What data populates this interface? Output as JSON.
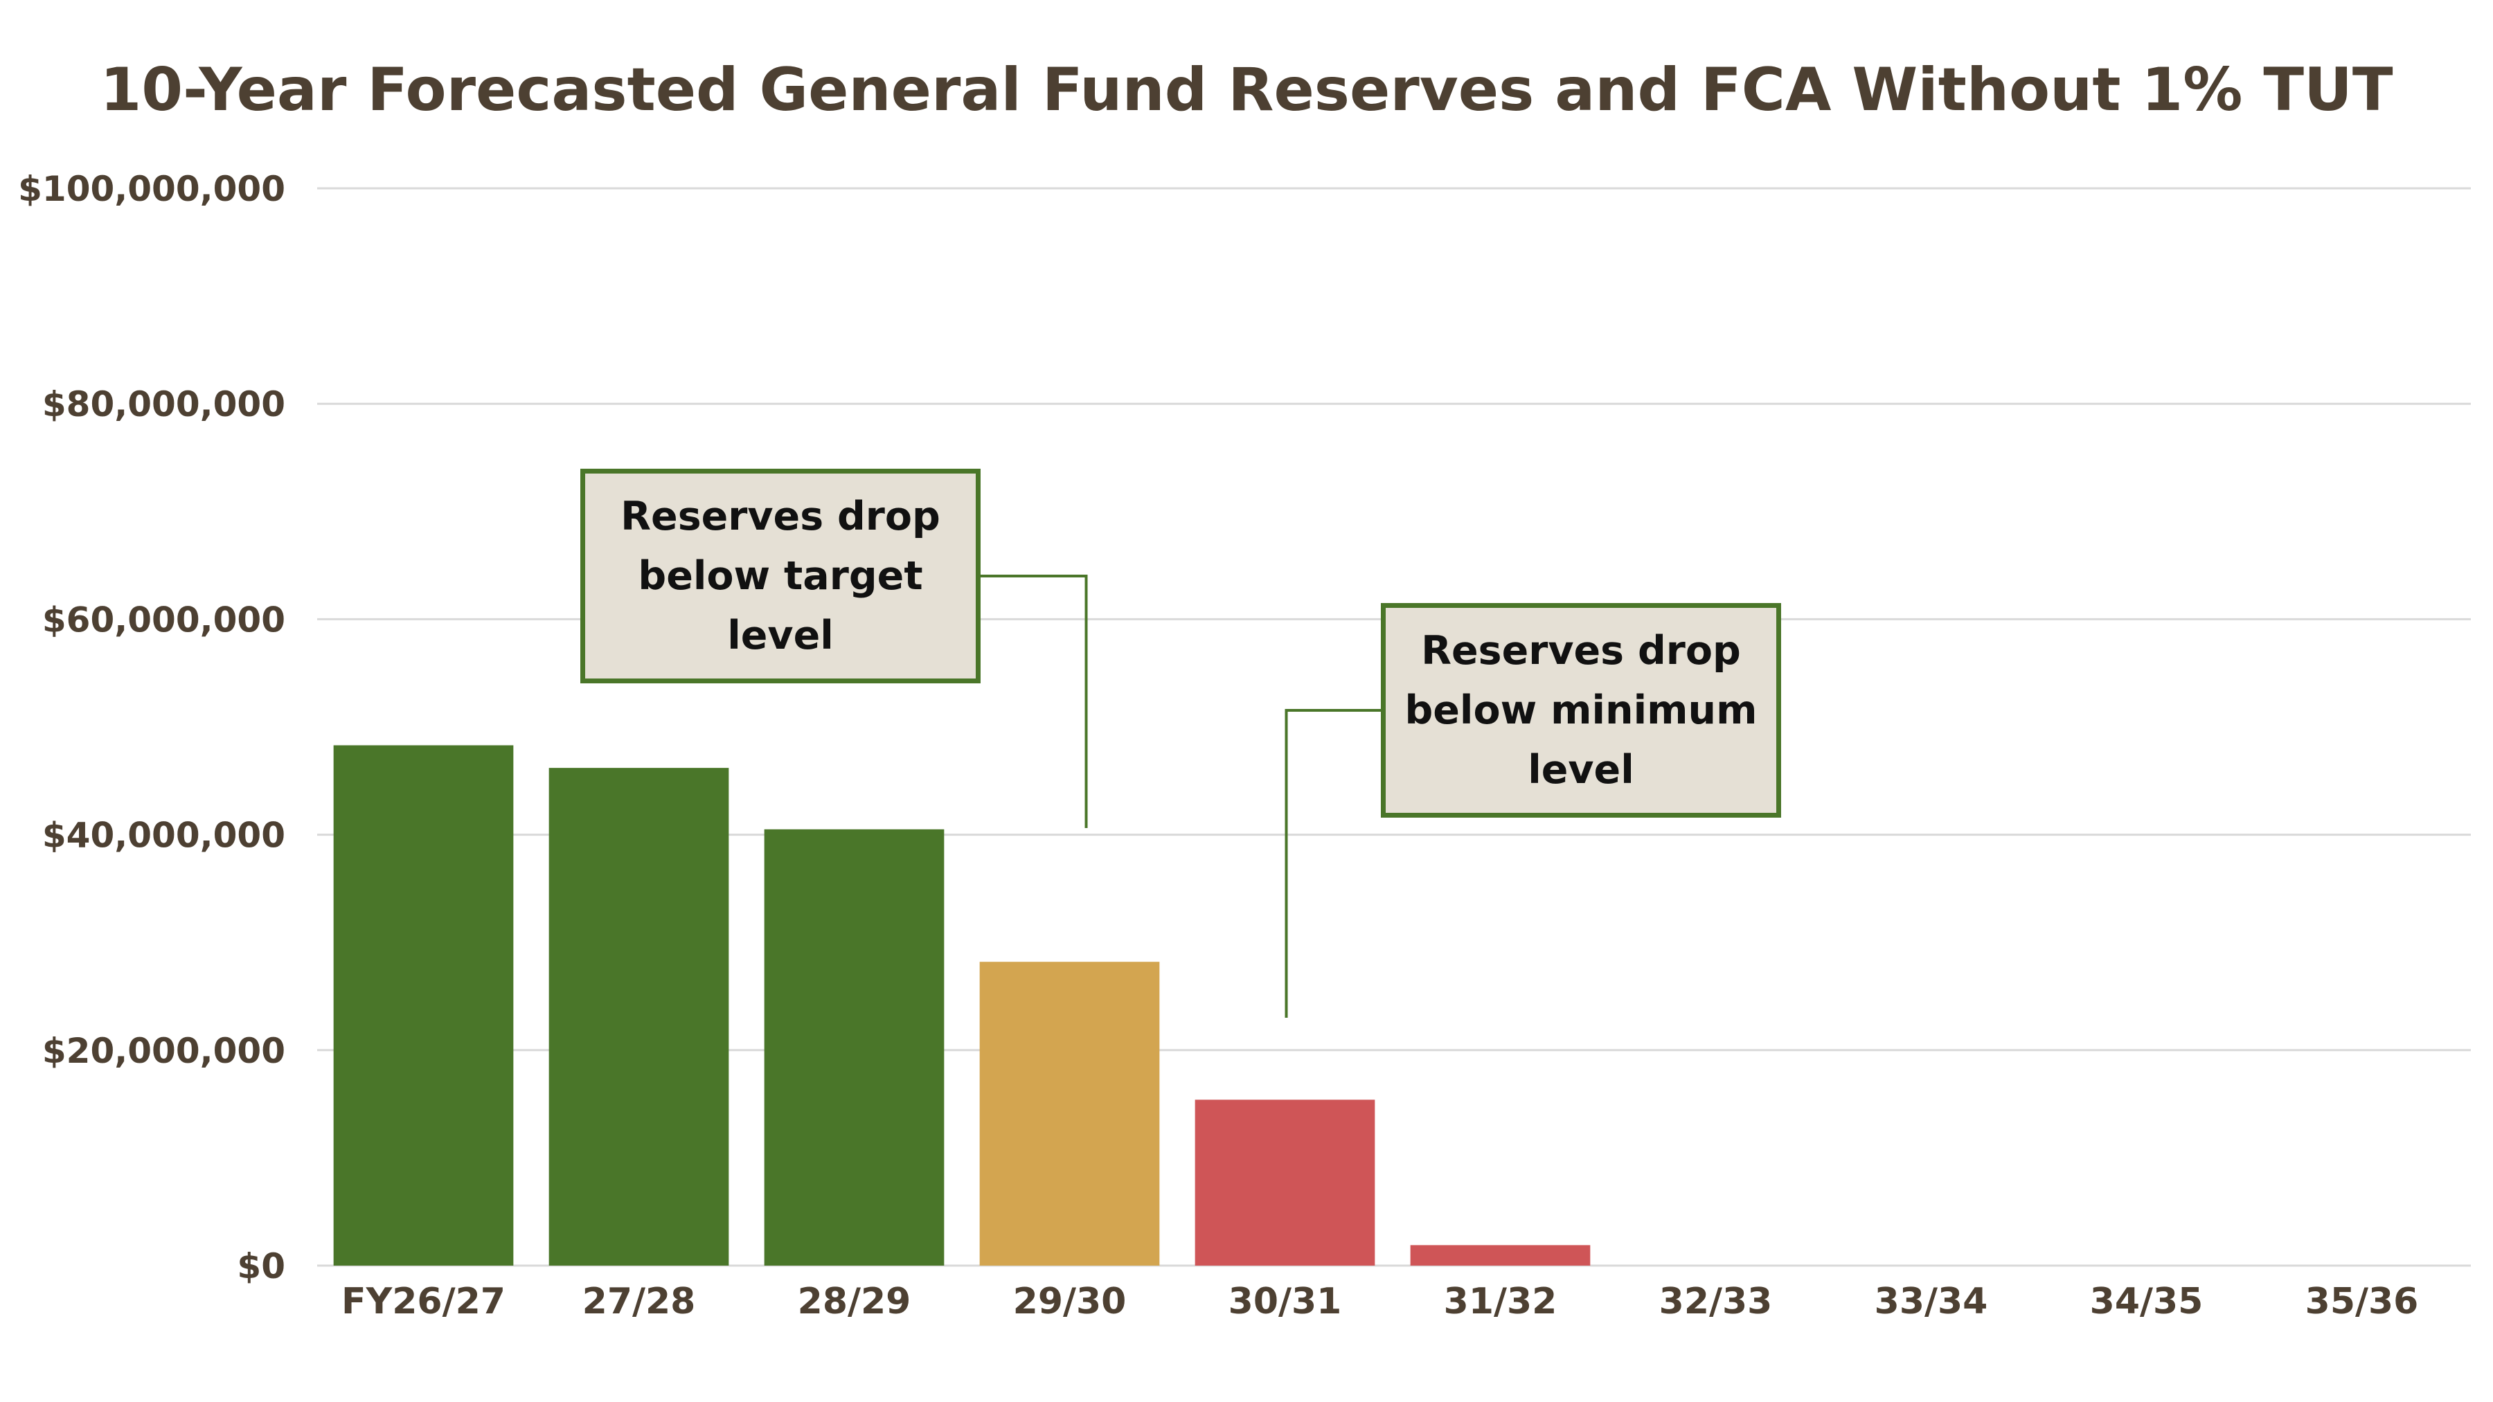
{
  "chart_data": {
    "type": "bar",
    "title": "10-Year Forecasted General Fund Reserves and FCA Without 1% TUT",
    "xlabel": "",
    "ylabel": "",
    "categories": [
      "FY26/27",
      "27/28",
      "28/29",
      "29/30",
      "30/31",
      "31/32",
      "32/33",
      "33/34",
      "34/35",
      "35/36"
    ],
    "values": [
      48300000,
      46200000,
      40500000,
      28200000,
      15400000,
      1900000,
      0,
      0,
      0,
      0
    ],
    "bar_colors": [
      "#4a7629",
      "#4a7629",
      "#4a7629",
      "#d3a550",
      "#cf5557",
      "#cf5557",
      "#cf5557",
      "#cf5557",
      "#cf5557",
      "#cf5557"
    ],
    "ylim": [
      0,
      100000000
    ],
    "yticks": [
      0,
      20000000,
      40000000,
      60000000,
      80000000,
      100000000
    ],
    "ytick_labels": [
      "$0",
      "$20,000,000",
      "$40,000,000",
      "$60,000,000",
      "$80,000,000",
      "$100,000,000"
    ],
    "grid": true,
    "legend": "none",
    "annotations": [
      {
        "id": "target",
        "text": "Reserves drop\nbelow target\nlevel",
        "points_to": "29/30"
      },
      {
        "id": "minimum",
        "text": "Reserves drop\nbelow minimum\nlevel",
        "points_to": "30/31"
      }
    ],
    "colors": {
      "title": "#4d4032",
      "axis_text": "#4d4032",
      "grid": "#d9d9d9",
      "callout_fill": "#e5e0d5",
      "callout_border": "#4a7629",
      "connector": "#4a7629"
    }
  }
}
